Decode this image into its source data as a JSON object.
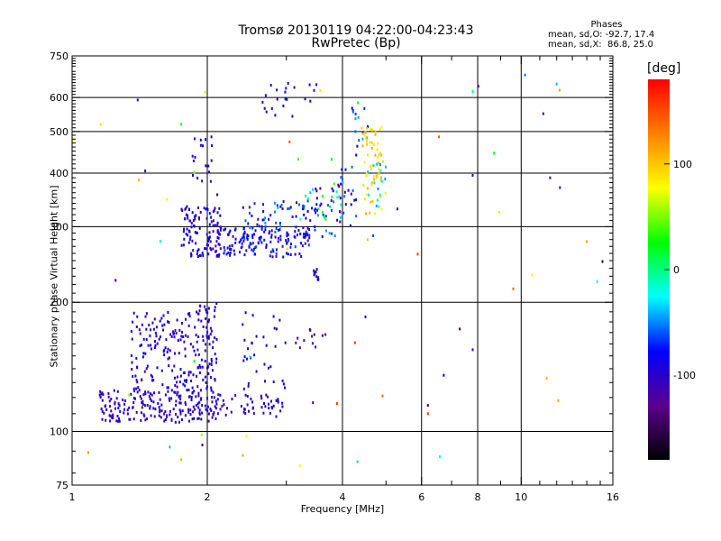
{
  "chart_data": {
    "type": "scatter",
    "title": "Tromsø 20130119 04:22:00-04:23:43",
    "subtitle": "RwPretec (Bp)",
    "xlabel": "Frequency [MHz]",
    "ylabel": "Stationary phase Virtual Height [km]",
    "x_scale": "log",
    "y_scale": "log",
    "xlim": [
      1,
      16
    ],
    "ylim": [
      75,
      750
    ],
    "x_ticks": [
      1,
      2,
      4,
      6,
      8,
      10,
      16
    ],
    "x_tick_labels": [
      "1",
      "2",
      "4",
      "6",
      "8",
      "10",
      "16"
    ],
    "x_minor": [
      3,
      5,
      7,
      9,
      11,
      12,
      13,
      14,
      15
    ],
    "y_ticks": [
      75,
      100,
      200,
      300,
      400,
      500,
      600,
      750
    ],
    "y_tick_labels": [
      "75",
      "100",
      "200",
      "300",
      "400",
      "500",
      "600",
      "750"
    ],
    "grid": true,
    "colorbar": {
      "unit": "[deg]",
      "range": [
        -180,
        180
      ],
      "tick_values": [
        100,
        0,
        -100
      ],
      "tick_labels": [
        "100",
        "0",
        "-100"
      ],
      "colors": [
        "#000000",
        "#5a008c",
        "#0000ff",
        "#00ffff",
        "#00ff00",
        "#ffff00",
        "#ff8000",
        "#ff0000"
      ]
    },
    "phases": {
      "title": "Phases",
      "line1": "mean, sd,O: -92.7, 17.4",
      "line2": "mean, sd,X:  86.8, 25.0"
    },
    "point_groups": [
      {
        "x": [
          1.15,
          1.95
        ],
        "y": [
          105,
          125
        ],
        "phase": [
          -110,
          -95
        ],
        "n": 180
      },
      {
        "x": [
          1.35,
          2.05
        ],
        "y": [
          125,
          190
        ],
        "phase": [
          -110,
          -85
        ],
        "n": 170
      },
      {
        "x": [
          1.9,
          2.1
        ],
        "y": [
          105,
          200
        ],
        "phase": [
          -110,
          -80
        ],
        "n": 70
      },
      {
        "x": [
          2.05,
          2.95
        ],
        "y": [
          108,
          122
        ],
        "phase": [
          -110,
          -90
        ],
        "n": 45
      },
      {
        "x": [
          2.35,
          3.0
        ],
        "y": [
          115,
          195
        ],
        "phase": [
          -110,
          -80
        ],
        "n": 40
      },
      {
        "x": [
          3.1,
          3.7
        ],
        "y": [
          155,
          175
        ],
        "phase": [
          -140,
          -120
        ],
        "n": 12
      },
      {
        "x": [
          1.75,
          2.15
        ],
        "y": [
          255,
          335
        ],
        "phase": [
          -110,
          -80
        ],
        "n": 120
      },
      {
        "x": [
          2.15,
          3.4
        ],
        "y": [
          255,
          300
        ],
        "phase": [
          -110,
          -60
        ],
        "n": 120
      },
      {
        "x": [
          2.4,
          3.9
        ],
        "y": [
          280,
          345
        ],
        "phase": [
          -110,
          -40
        ],
        "n": 90
      },
      {
        "x": [
          3.2,
          4.0
        ],
        "y": [
          310,
          380
        ],
        "phase": [
          -140,
          40
        ],
        "n": 35
      },
      {
        "x": [
          3.45,
          3.65
        ],
        "y": [
          225,
          240
        ],
        "phase": [
          -110,
          -90
        ],
        "n": 10
      },
      {
        "x": [
          1.85,
          2.05
        ],
        "y": [
          380,
          490
        ],
        "phase": [
          -110,
          -80
        ],
        "n": 18
      },
      {
        "x": [
          2.6,
          3.55
        ],
        "y": [
          540,
          650
        ],
        "phase": [
          -110,
          -80
        ],
        "n": 22
      },
      {
        "x": [
          3.9,
          4.3
        ],
        "y": [
          300,
          420
        ],
        "phase": [
          -110,
          -20
        ],
        "n": 25
      },
      {
        "x": [
          4.2,
          4.6
        ],
        "y": [
          440,
          590
        ],
        "phase": [
          -120,
          -40
        ],
        "n": 15
      },
      {
        "x": [
          4.4,
          5.0
        ],
        "y": [
          320,
          520
        ],
        "phase": [
          70,
          115
        ],
        "n": 60
      },
      {
        "x": [
          4.5,
          5.0
        ],
        "y": [
          330,
          420
        ],
        "phase": [
          -60,
          -20
        ],
        "n": 15
      },
      {
        "x": [
          1.0,
          16.0
        ],
        "y": [
          80,
          700
        ],
        "phase": [
          -160,
          160
        ],
        "n": 40
      }
    ],
    "outliers": [
      {
        "x": 1.4,
        "y": 592,
        "phase": -110
      },
      {
        "x": 1.75,
        "y": 520,
        "phase": 20
      },
      {
        "x": 7.8,
        "y": 620,
        "phase": 0
      },
      {
        "x": 11.2,
        "y": 550,
        "phase": -110
      },
      {
        "x": 12.0,
        "y": 645,
        "phase": -40
      },
      {
        "x": 8.7,
        "y": 445,
        "phase": 20
      },
      {
        "x": 7.8,
        "y": 395,
        "phase": -110
      },
      {
        "x": 11.6,
        "y": 390,
        "phase": -110
      },
      {
        "x": 12.2,
        "y": 370,
        "phase": -110
      },
      {
        "x": 14.0,
        "y": 277,
        "phase": 120
      },
      {
        "x": 9.6,
        "y": 215,
        "phase": 140
      },
      {
        "x": 11.4,
        "y": 133,
        "phase": 110
      },
      {
        "x": 12.1,
        "y": 118,
        "phase": 110
      },
      {
        "x": 6.2,
        "y": 115,
        "phase": -150
      },
      {
        "x": 6.2,
        "y": 110,
        "phase": 160
      },
      {
        "x": 7.8,
        "y": 155,
        "phase": -110
      },
      {
        "x": 5.3,
        "y": 330,
        "phase": -110
      },
      {
        "x": 4.55,
        "y": 280,
        "phase": 100
      },
      {
        "x": 4.5,
        "y": 185,
        "phase": -110
      },
      {
        "x": 1.65,
        "y": 92,
        "phase": -40
      },
      {
        "x": 1.75,
        "y": 86,
        "phase": 110
      },
      {
        "x": 2.4,
        "y": 88,
        "phase": 110
      },
      {
        "x": 1.95,
        "y": 93,
        "phase": -140
      },
      {
        "x": 1.25,
        "y": 225,
        "phase": -110
      }
    ]
  }
}
